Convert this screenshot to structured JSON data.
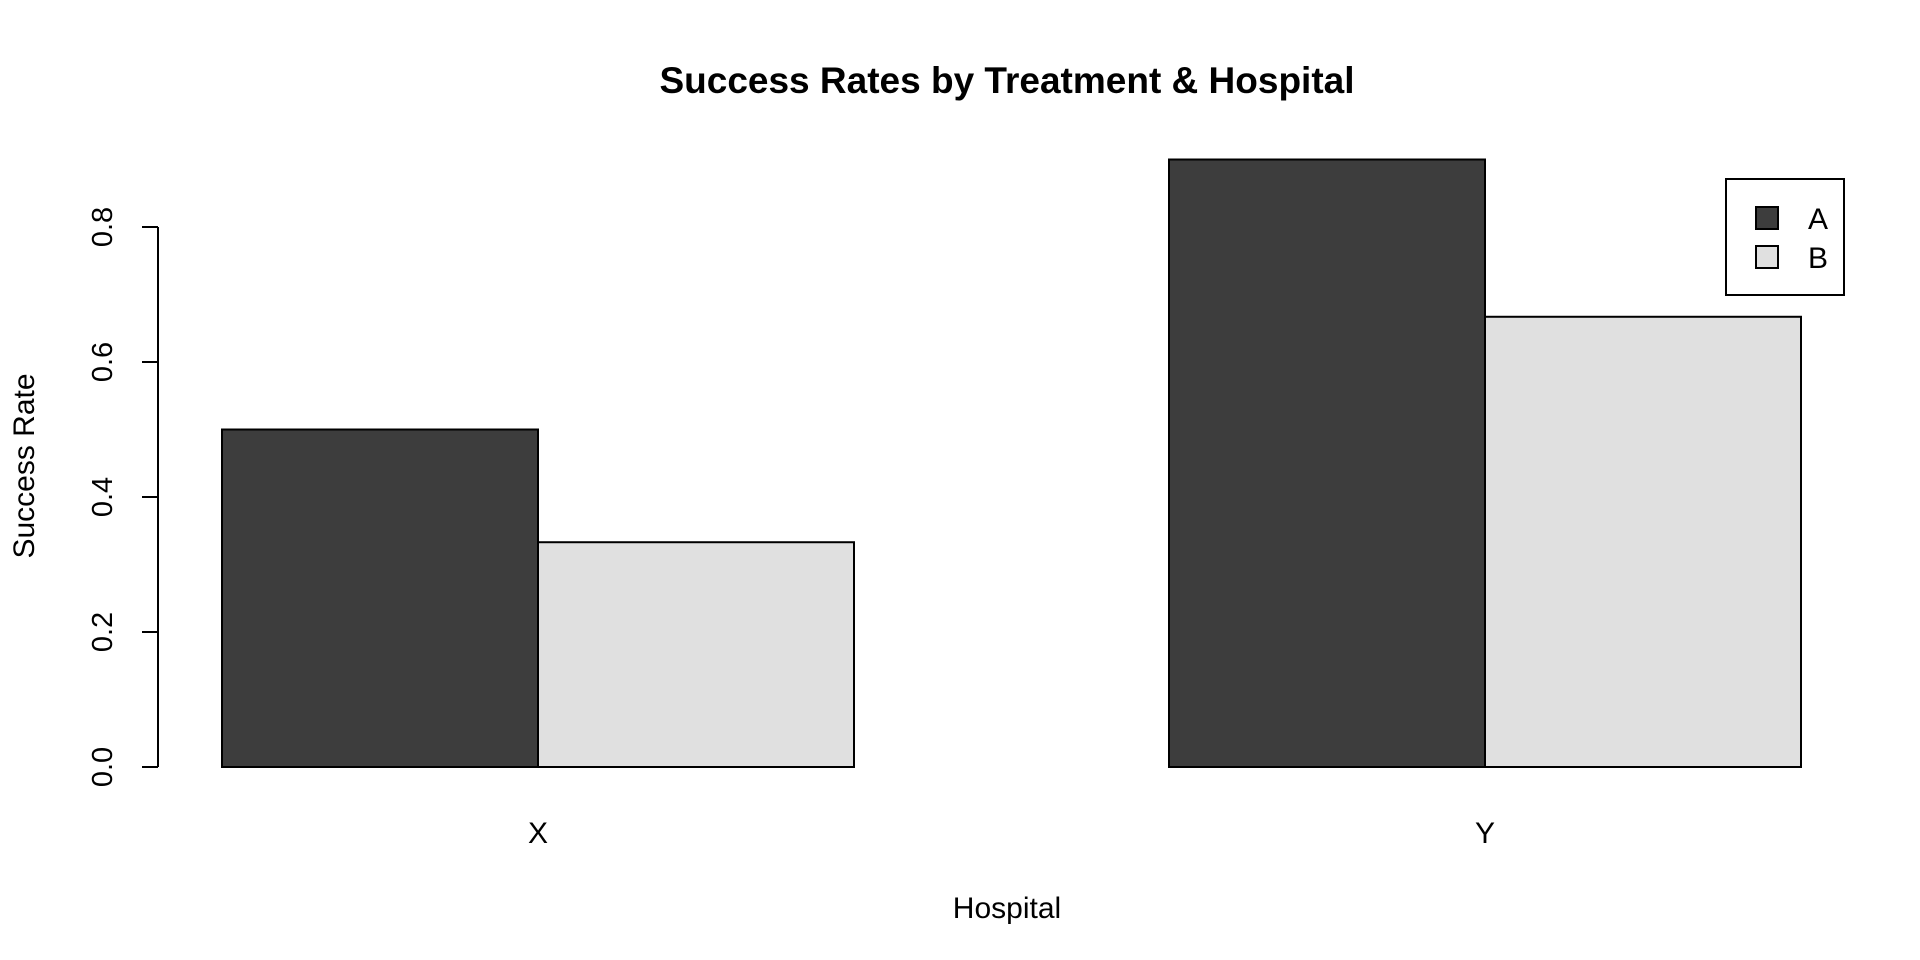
{
  "chart_data": {
    "type": "bar",
    "layout": "grouped",
    "title": "Success Rates by Treatment & Hospital",
    "xlabel": "Hospital",
    "ylabel": "Success Rate",
    "categories": [
      "X",
      "Y"
    ],
    "series": [
      {
        "name": "A",
        "color": "#3d3d3d",
        "values": [
          0.5,
          0.9
        ]
      },
      {
        "name": "B",
        "color": "#e0e0e0",
        "values": [
          0.333,
          0.667
        ]
      }
    ],
    "ylim": [
      0,
      0.8
    ],
    "yticks": [
      0.0,
      0.2,
      0.4,
      0.6,
      0.8
    ],
    "ytick_labels": [
      "0.0",
      "0.2",
      "0.4",
      "0.6",
      "0.8"
    ],
    "grid": false,
    "legend": {
      "placement": "top-right",
      "entries": [
        "A",
        "B"
      ]
    }
  }
}
